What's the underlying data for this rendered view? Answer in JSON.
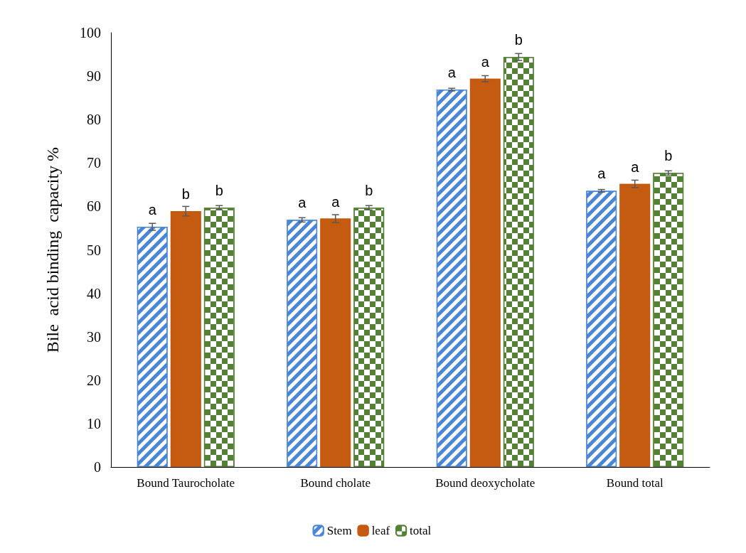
{
  "chart_data": {
    "type": "bar",
    "ylabel": "Bile  acid binding  capacity %",
    "categories": [
      "Bound Taurocholate",
      "Bound cholate",
      "Bound deoxycholate",
      "Bound total"
    ],
    "series": [
      {
        "name": "Stem",
        "color": "#4a86d8",
        "values": [
          55.3,
          56.9,
          86.9,
          63.6
        ],
        "errors": [
          0.8,
          0.5,
          0.3,
          0.3
        ],
        "value_labels": [
          "a",
          "a",
          "a",
          "a"
        ]
      },
      {
        "name": "leaf",
        "color": "#c55a11",
        "values": [
          58.9,
          57.2,
          89.4,
          65.2
        ],
        "errors": [
          1.1,
          0.9,
          0.7,
          0.85
        ],
        "value_labels": [
          "b",
          "a",
          "a",
          "a"
        ]
      },
      {
        "name": "total",
        "color": "#538135",
        "values": [
          59.7,
          59.7,
          94.4,
          67.7
        ],
        "errors": [
          0.5,
          0.5,
          0.8,
          0.5
        ],
        "value_labels": [
          "b",
          "b",
          "b",
          "b"
        ]
      }
    ],
    "ylim": [
      0,
      100
    ],
    "yticks": [
      0,
      10,
      20,
      30,
      40,
      50,
      60,
      70,
      80,
      90,
      100
    ],
    "grid": false,
    "legend": "bottom"
  }
}
